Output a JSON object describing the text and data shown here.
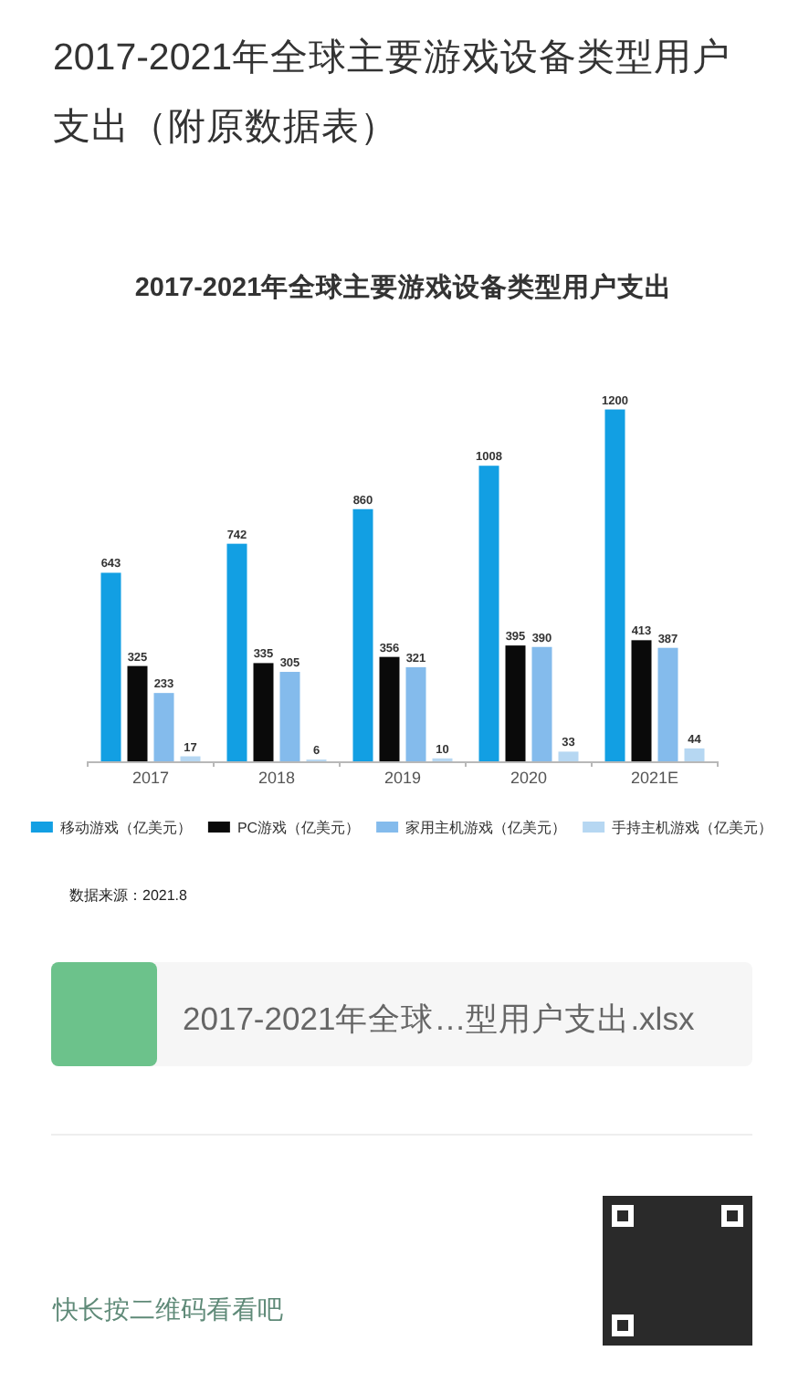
{
  "chart_data": {
    "type": "bar",
    "title": "2017-2021年全球主要游戏设备类型用户支出（附原数据表）",
    "subtitle": "2017-2021年全球主要游戏设备类型用户支出",
    "categories": [
      "2017",
      "2018",
      "2019",
      "2020",
      "2021E"
    ],
    "series": [
      {
        "name": "移动游戏（亿美元）",
        "color": "#129fe3",
        "values": [
          643,
          742,
          860,
          1008,
          1200
        ]
      },
      {
        "name": "PC游戏（亿美元）",
        "color": "#0a0a0a",
        "values": [
          325,
          335,
          356,
          395,
          413
        ]
      },
      {
        "name": "家用主机游戏（亿美元）",
        "color": "#84bbec",
        "values": [
          233,
          305,
          321,
          390,
          387
        ]
      },
      {
        "name": "手持主机游戏（亿美元）",
        "color": "#b6d7f2",
        "values": [
          17,
          6,
          10,
          33,
          44
        ]
      }
    ],
    "data_labels": true,
    "legend": "bottom",
    "annotations": [
      "数据来源：2021.8",
      "2017-2021年全球…型用户支出.xlsx",
      "快长按二维码看看吧"
    ]
  }
}
